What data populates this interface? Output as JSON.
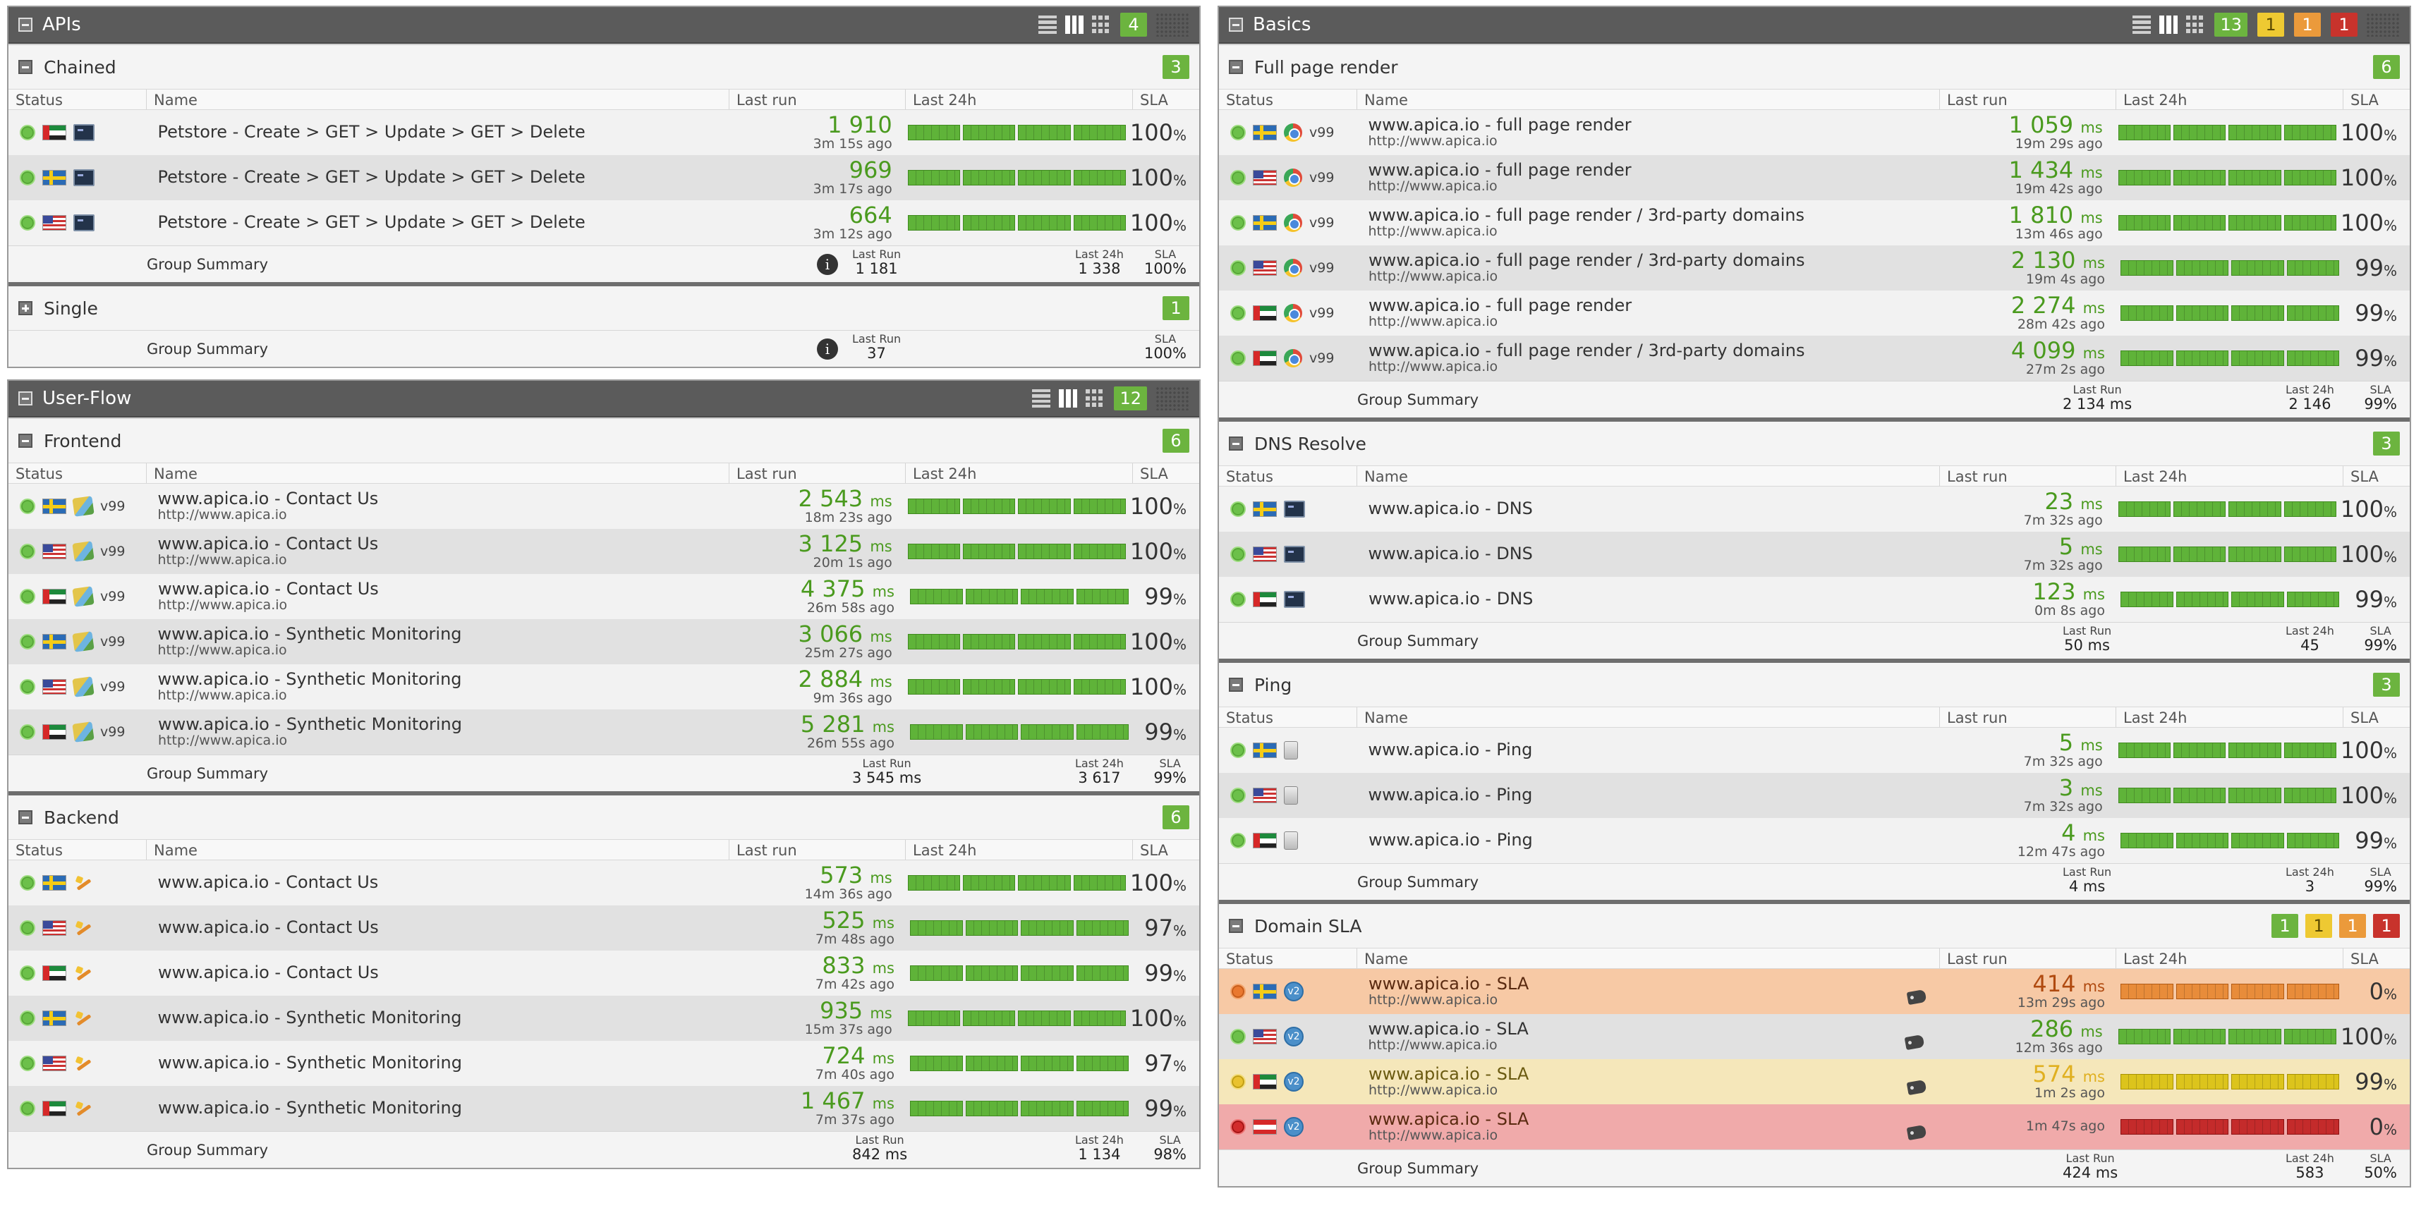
{
  "colors": {
    "ok": "#6cb43f",
    "warn": "#eb9a3b",
    "minor": "#eec932",
    "crit": "#c8332c",
    "header": "#5b5b5b"
  },
  "columns": {
    "status": "Status",
    "name": "Name",
    "last_run": "Last run",
    "last_24h": "Last 24h",
    "sla": "SLA"
  },
  "summary": {
    "label": "Group Summary",
    "last_run": "Last Run",
    "last_24h": "Last 24h",
    "sla": "SLA"
  },
  "apis": {
    "title": "APIs",
    "badges": [
      "4"
    ],
    "chained": {
      "name": "Chained",
      "count": "3",
      "rows": [
        {
          "flag": "ae",
          "name": "Petstore - Create > GET > Update > GET > Delete",
          "value": "1 910",
          "ago": "3m 15s ago",
          "sla": "100"
        },
        {
          "flag": "se",
          "name": "Petstore - Create > GET > Update > GET > Delete",
          "value": "969",
          "ago": "3m 17s ago",
          "sla": "100"
        },
        {
          "flag": "us",
          "name": "Petstore - Create > GET > Update > GET > Delete",
          "value": "664",
          "ago": "3m 12s ago",
          "sla": "100"
        }
      ],
      "sum_last": "1 181",
      "sum_24h": "1 338",
      "sum_sla": "100%"
    },
    "single": {
      "name": "Single",
      "count": "1",
      "sum_last": "37",
      "sum_sla": "100%"
    }
  },
  "userflow": {
    "title": "User-Flow",
    "badges": [
      "12"
    ],
    "frontend": {
      "name": "Frontend",
      "count": "6",
      "rows": [
        {
          "flag": "se",
          "name": "www.apica.io - Contact Us",
          "url": "http://www.apica.io",
          "ver": "v99",
          "value": "2 543",
          "unit": "ms",
          "ago": "18m 23s ago",
          "sla": "100"
        },
        {
          "flag": "us",
          "name": "www.apica.io - Contact Us",
          "url": "http://www.apica.io",
          "ver": "v99",
          "value": "3 125",
          "unit": "ms",
          "ago": "20m 1s ago",
          "sla": "100"
        },
        {
          "flag": "ae",
          "name": "www.apica.io - Contact Us",
          "url": "http://www.apica.io",
          "ver": "v99",
          "value": "4 375",
          "unit": "ms",
          "ago": "26m 58s ago",
          "sla": "99"
        },
        {
          "flag": "se",
          "name": "www.apica.io - Synthetic Monitoring",
          "url": "http://www.apica.io",
          "ver": "v99",
          "value": "3 066",
          "unit": "ms",
          "ago": "25m 27s ago",
          "sla": "100"
        },
        {
          "flag": "us",
          "name": "www.apica.io - Synthetic Monitoring",
          "url": "http://www.apica.io",
          "ver": "v99",
          "value": "2 884",
          "unit": "ms",
          "ago": "9m 36s ago",
          "sla": "100"
        },
        {
          "flag": "ae",
          "name": "www.apica.io - Synthetic Monitoring",
          "url": "http://www.apica.io",
          "ver": "v99",
          "value": "5 281",
          "unit": "ms",
          "ago": "26m 55s ago",
          "sla": "99"
        }
      ],
      "sum_last": "3 545 ms",
      "sum_24h": "3 617",
      "sum_sla": "99%"
    },
    "backend": {
      "name": "Backend",
      "count": "6",
      "rows": [
        {
          "flag": "se",
          "name": "www.apica.io - Contact Us",
          "value": "573",
          "unit": "ms",
          "ago": "14m 36s ago",
          "sla": "100"
        },
        {
          "flag": "us",
          "name": "www.apica.io - Contact Us",
          "value": "525",
          "unit": "ms",
          "ago": "7m 48s ago",
          "sla": "97"
        },
        {
          "flag": "ae",
          "name": "www.apica.io - Contact Us",
          "value": "833",
          "unit": "ms",
          "ago": "7m 42s ago",
          "sla": "99"
        },
        {
          "flag": "se",
          "name": "www.apica.io - Synthetic Monitoring",
          "value": "935",
          "unit": "ms",
          "ago": "15m 37s ago",
          "sla": "100"
        },
        {
          "flag": "us",
          "name": "www.apica.io - Synthetic Monitoring",
          "value": "724",
          "unit": "ms",
          "ago": "7m 40s ago",
          "sla": "97"
        },
        {
          "flag": "ae",
          "name": "www.apica.io - Synthetic Monitoring",
          "value": "1 467",
          "unit": "ms",
          "ago": "7m 37s ago",
          "sla": "99"
        }
      ],
      "sum_last": "842 ms",
      "sum_24h": "1 134",
      "sum_sla": "98%"
    }
  },
  "basics": {
    "title": "Basics",
    "badges": [
      "13",
      "1",
      "1",
      "1"
    ],
    "fullpage": {
      "name": "Full page render",
      "count": "6",
      "rows": [
        {
          "flag": "se",
          "name": "www.apica.io - full page render",
          "url": "http://www.apica.io",
          "ver": "v99",
          "value": "1 059",
          "unit": "ms",
          "ago": "19m 29s ago",
          "sla": "100"
        },
        {
          "flag": "us",
          "name": "www.apica.io - full page render",
          "url": "http://www.apica.io",
          "ver": "v99",
          "value": "1 434",
          "unit": "ms",
          "ago": "19m 42s ago",
          "sla": "100"
        },
        {
          "flag": "se",
          "name": "www.apica.io - full page render / 3rd-party domains",
          "url": "http://www.apica.io",
          "ver": "v99",
          "value": "1 810",
          "unit": "ms",
          "ago": "13m 46s ago",
          "sla": "100"
        },
        {
          "flag": "us",
          "name": "www.apica.io - full page render / 3rd-party domains",
          "url": "http://www.apica.io",
          "ver": "v99",
          "value": "2 130",
          "unit": "ms",
          "ago": "19m 4s ago",
          "sla": "99"
        },
        {
          "flag": "ae",
          "name": "www.apica.io - full page render",
          "url": "http://www.apica.io",
          "ver": "v99",
          "value": "2 274",
          "unit": "ms",
          "ago": "28m 42s ago",
          "sla": "99"
        },
        {
          "flag": "ae",
          "name": "www.apica.io - full page render / 3rd-party domains",
          "url": "http://www.apica.io",
          "ver": "v99",
          "value": "4 099",
          "unit": "ms",
          "ago": "27m 2s ago",
          "sla": "99"
        }
      ],
      "sum_last": "2 134 ms",
      "sum_24h": "2 146",
      "sum_sla": "99%"
    },
    "dns": {
      "name": "DNS Resolve",
      "count": "3",
      "rows": [
        {
          "flag": "se",
          "name": "www.apica.io - DNS",
          "value": "23",
          "unit": "ms",
          "ago": "7m 32s ago",
          "sla": "100"
        },
        {
          "flag": "us",
          "name": "www.apica.io - DNS",
          "value": "5",
          "unit": "ms",
          "ago": "7m 32s ago",
          "sla": "100"
        },
        {
          "flag": "ae",
          "name": "www.apica.io - DNS",
          "value": "123",
          "unit": "ms",
          "ago": "0m 8s ago",
          "sla": "99"
        }
      ],
      "sum_last": "50 ms",
      "sum_24h": "45",
      "sum_sla": "99%"
    },
    "ping": {
      "name": "Ping",
      "count": "3",
      "rows": [
        {
          "flag": "se",
          "name": "www.apica.io - Ping",
          "value": "5",
          "unit": "ms",
          "ago": "7m 32s ago",
          "sla": "100"
        },
        {
          "flag": "us",
          "name": "www.apica.io - Ping",
          "value": "3",
          "unit": "ms",
          "ago": "7m 32s ago",
          "sla": "100"
        },
        {
          "flag": "ae",
          "name": "www.apica.io - Ping",
          "value": "4",
          "unit": "ms",
          "ago": "12m 47s ago",
          "sla": "99"
        }
      ],
      "sum_last": "4 ms",
      "sum_24h": "3",
      "sum_sla": "99%"
    },
    "domainsla": {
      "name": "Domain SLA",
      "badges": [
        "1",
        "1",
        "1",
        "1"
      ],
      "rows": [
        {
          "flag": "se",
          "status": "orange",
          "name": "www.apica.io - SLA",
          "url": "http://www.apica.io",
          "value": "414",
          "unit": "ms",
          "ago": "13m 29s ago",
          "sla": "0"
        },
        {
          "flag": "us",
          "status": "ok",
          "name": "www.apica.io - SLA",
          "url": "http://www.apica.io",
          "value": "286",
          "unit": "ms",
          "ago": "12m 36s ago",
          "sla": "100"
        },
        {
          "flag": "ae",
          "status": "yellow",
          "name": "www.apica.io - SLA",
          "url": "http://www.apica.io",
          "value": "574",
          "unit": "ms",
          "ago": "1m 2s ago",
          "sla": "99"
        },
        {
          "flag": "at",
          "status": "red",
          "name": "www.apica.io - SLA",
          "url": "http://www.apica.io",
          "value": "",
          "unit": "",
          "ago": "1m 47s ago",
          "sla": "0"
        }
      ],
      "sum_last": "424 ms",
      "sum_24h": "583",
      "sum_sla": "50%"
    }
  }
}
